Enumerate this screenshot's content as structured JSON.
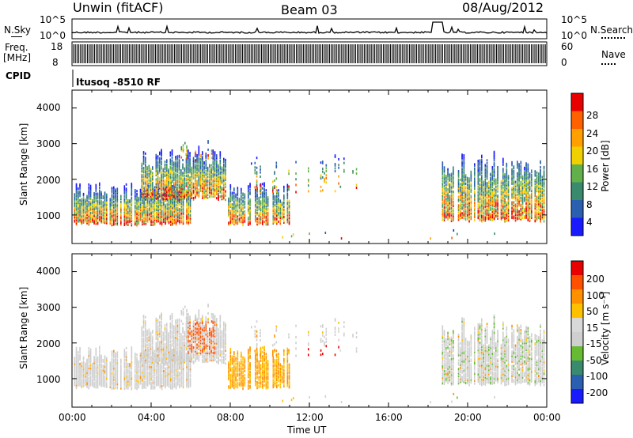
{
  "header": {
    "station": "Unwin (fitACF)",
    "beam": "Beam 03",
    "date": "08/Aug/2012"
  },
  "top_panels": {
    "nsky_label": "N.Sky",
    "nsky_ticks": [
      "10^5",
      "10^0"
    ],
    "nsearch_label": "N.Search",
    "nsearch_ticks": [
      "10^5",
      "10^0"
    ],
    "freq_label": "Freq.",
    "freq_unit": "[MHz]",
    "freq_ticks": [
      "18",
      "8"
    ],
    "nave_label": "Nave",
    "nave_ticks": [
      "60",
      "0"
    ],
    "cpid_label": "CPID",
    "cpid_text": "Itusoq -8510 RF"
  },
  "colors": {
    "power_scale": [
      "#1a1aff",
      "#2b5fb0",
      "#3a8a6e",
      "#62b04c",
      "#f0d000",
      "#ffa000",
      "#ff6000",
      "#e80000"
    ],
    "velocity_scale": [
      "#1a1aff",
      "#2b5fb0",
      "#3a8a6e",
      "#66bb33",
      "#cfcfcf",
      "#d8d8d8",
      "#ffc000",
      "#ff9000",
      "#ff5000",
      "#e80000"
    ]
  },
  "chart_data": [
    {
      "type": "heatmap",
      "panel": "power",
      "ylabel": "Slant Range [km]",
      "yticks": [
        "1000",
        "2000",
        "3000",
        "4000"
      ],
      "ylim": [
        200,
        4500
      ],
      "colorbar_label": "Power [dB]",
      "colorbar_ticks": [
        "4",
        "8",
        "12",
        "16",
        "20",
        "24",
        "28"
      ],
      "colorbar_range": [
        0,
        32
      ]
    },
    {
      "type": "heatmap",
      "panel": "velocity",
      "ylabel": "Slant Range [km]",
      "yticks": [
        "1000",
        "2000",
        "3000",
        "4000"
      ],
      "ylim": [
        200,
        4500
      ],
      "colorbar_label": "Velocity [m s⁻¹]",
      "colorbar_ticks": [
        "200",
        "100",
        "50",
        "15",
        "-15",
        "-50",
        "-100",
        "-200"
      ]
    },
    {
      "type": "axis",
      "xlabel": "Time UT",
      "xticks": [
        "00:00",
        "04:00",
        "08:00",
        "12:00",
        "16:00",
        "20:00",
        "00:00"
      ],
      "xlim_hours": [
        0,
        24
      ]
    }
  ]
}
